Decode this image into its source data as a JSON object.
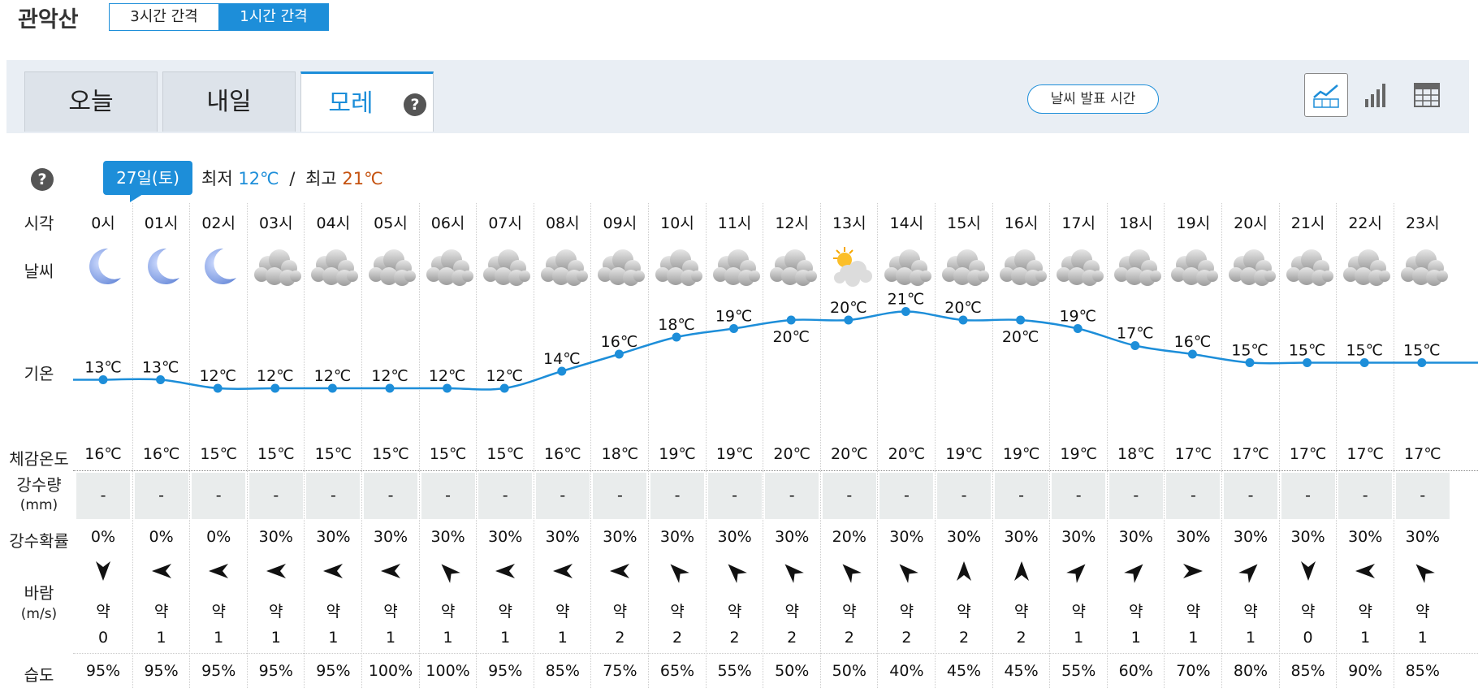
{
  "location": "관악산",
  "interval_tabs": [
    "3시간 간격",
    "1시간 간격"
  ],
  "day_tabs": [
    "오늘",
    "내일",
    "모레"
  ],
  "help_mark": "?",
  "publish_button": "날씨 발표 시간",
  "view_icons": [
    "line-chart-icon",
    "bar-chart-icon",
    "table-icon"
  ],
  "date_badge": "27일(토)",
  "minmax": {
    "min_label": "최저",
    "min": "12℃",
    "sep": "/",
    "max_label": "최고",
    "max": "21℃"
  },
  "row_labels": {
    "time": "시각",
    "weather": "날씨",
    "temp": "기온",
    "feel": "체감온도",
    "rain_1": "강수량",
    "rain_2": "(mm)",
    "prob": "강수확률",
    "wind_1": "바람",
    "wind_2": "(m/s)",
    "humidity": "습도"
  },
  "colors": {
    "accent": "#1d8ed9",
    "max_temp": "#c5520f",
    "rain_bg": "#e9ecec"
  },
  "hours": [
    {
      "time": "0시",
      "icon": "moon-icon",
      "temp": 13,
      "temp_label": "13℃",
      "feel": "16℃",
      "rain": "-",
      "prob": "0%",
      "wind_dir": "S",
      "wind_text": "약",
      "wind_speed": "0",
      "humidity": "95%"
    },
    {
      "time": "01시",
      "icon": "moon-icon",
      "temp": 13,
      "temp_label": "13℃",
      "feel": "16℃",
      "rain": "-",
      "prob": "0%",
      "wind_dir": "W",
      "wind_text": "약",
      "wind_speed": "1",
      "humidity": "95%"
    },
    {
      "time": "02시",
      "icon": "moon-icon",
      "temp": 12,
      "temp_label": "12℃",
      "feel": "15℃",
      "rain": "-",
      "prob": "0%",
      "wind_dir": "W",
      "wind_text": "약",
      "wind_speed": "1",
      "humidity": "95%"
    },
    {
      "time": "03시",
      "icon": "cloud-icon",
      "temp": 12,
      "temp_label": "12℃",
      "feel": "15℃",
      "rain": "-",
      "prob": "30%",
      "wind_dir": "W",
      "wind_text": "약",
      "wind_speed": "1",
      "humidity": "95%"
    },
    {
      "time": "04시",
      "icon": "cloud-icon",
      "temp": 12,
      "temp_label": "12℃",
      "feel": "15℃",
      "rain": "-",
      "prob": "30%",
      "wind_dir": "W",
      "wind_text": "약",
      "wind_speed": "1",
      "humidity": "95%"
    },
    {
      "time": "05시",
      "icon": "cloud-icon",
      "temp": 12,
      "temp_label": "12℃",
      "feel": "15℃",
      "rain": "-",
      "prob": "30%",
      "wind_dir": "W",
      "wind_text": "약",
      "wind_speed": "1",
      "humidity": "100%"
    },
    {
      "time": "06시",
      "icon": "cloud-icon",
      "temp": 12,
      "temp_label": "12℃",
      "feel": "15℃",
      "rain": "-",
      "prob": "30%",
      "wind_dir": "NW",
      "wind_text": "약",
      "wind_speed": "1",
      "humidity": "100%"
    },
    {
      "time": "07시",
      "icon": "cloud-icon",
      "temp": 12,
      "temp_label": "12℃",
      "feel": "15℃",
      "rain": "-",
      "prob": "30%",
      "wind_dir": "W",
      "wind_text": "약",
      "wind_speed": "1",
      "humidity": "95%"
    },
    {
      "time": "08시",
      "icon": "cloud-icon",
      "temp": 14,
      "temp_label": "14℃",
      "feel": "16℃",
      "rain": "-",
      "prob": "30%",
      "wind_dir": "W",
      "wind_text": "약",
      "wind_speed": "1",
      "humidity": "85%"
    },
    {
      "time": "09시",
      "icon": "cloud-icon",
      "temp": 16,
      "temp_label": "16℃",
      "feel": "18℃",
      "rain": "-",
      "prob": "30%",
      "wind_dir": "W",
      "wind_text": "약",
      "wind_speed": "2",
      "humidity": "75%"
    },
    {
      "time": "10시",
      "icon": "cloud-icon",
      "temp": 18,
      "temp_label": "18℃",
      "feel": "19℃",
      "rain": "-",
      "prob": "30%",
      "wind_dir": "NW",
      "wind_text": "약",
      "wind_speed": "2",
      "humidity": "65%"
    },
    {
      "time": "11시",
      "icon": "cloud-icon",
      "temp": 19,
      "temp_label": "19℃",
      "feel": "19℃",
      "rain": "-",
      "prob": "30%",
      "wind_dir": "NW",
      "wind_text": "약",
      "wind_speed": "2",
      "humidity": "55%"
    },
    {
      "time": "12시",
      "icon": "cloud-icon",
      "temp": 20,
      "temp_label": "20℃",
      "feel": "20℃",
      "rain": "-",
      "prob": "30%",
      "wind_dir": "NW",
      "wind_text": "약",
      "wind_speed": "2",
      "humidity": "50%"
    },
    {
      "time": "13시",
      "icon": "sun-cloud-icon",
      "temp": 20,
      "temp_label": "20℃",
      "feel": "20℃",
      "rain": "-",
      "prob": "20%",
      "wind_dir": "NW",
      "wind_text": "약",
      "wind_speed": "2",
      "humidity": "50%"
    },
    {
      "time": "14시",
      "icon": "cloud-icon",
      "temp": 21,
      "temp_label": "21℃",
      "feel": "20℃",
      "rain": "-",
      "prob": "30%",
      "wind_dir": "NW",
      "wind_text": "약",
      "wind_speed": "2",
      "humidity": "40%"
    },
    {
      "time": "15시",
      "icon": "cloud-icon",
      "temp": 20,
      "temp_label": "20℃",
      "feel": "19℃",
      "rain": "-",
      "prob": "30%",
      "wind_dir": "N",
      "wind_text": "약",
      "wind_speed": "2",
      "humidity": "45%"
    },
    {
      "time": "16시",
      "icon": "cloud-icon",
      "temp": 20,
      "temp_label": "20℃",
      "feel": "19℃",
      "rain": "-",
      "prob": "30%",
      "wind_dir": "N",
      "wind_text": "약",
      "wind_speed": "2",
      "humidity": "45%"
    },
    {
      "time": "17시",
      "icon": "cloud-icon",
      "temp": 19,
      "temp_label": "19℃",
      "feel": "19℃",
      "rain": "-",
      "prob": "30%",
      "wind_dir": "NE",
      "wind_text": "약",
      "wind_speed": "1",
      "humidity": "55%"
    },
    {
      "time": "18시",
      "icon": "cloud-icon",
      "temp": 17,
      "temp_label": "17℃",
      "feel": "18℃",
      "rain": "-",
      "prob": "30%",
      "wind_dir": "NE",
      "wind_text": "약",
      "wind_speed": "1",
      "humidity": "60%"
    },
    {
      "time": "19시",
      "icon": "cloud-icon",
      "temp": 16,
      "temp_label": "16℃",
      "feel": "17℃",
      "rain": "-",
      "prob": "30%",
      "wind_dir": "E",
      "wind_text": "약",
      "wind_speed": "1",
      "humidity": "70%"
    },
    {
      "time": "20시",
      "icon": "cloud-icon",
      "temp": 15,
      "temp_label": "15℃",
      "feel": "17℃",
      "rain": "-",
      "prob": "30%",
      "wind_dir": "NE",
      "wind_text": "약",
      "wind_speed": "1",
      "humidity": "80%"
    },
    {
      "time": "21시",
      "icon": "cloud-icon",
      "temp": 15,
      "temp_label": "15℃",
      "feel": "17℃",
      "rain": "-",
      "prob": "30%",
      "wind_dir": "S",
      "wind_text": "약",
      "wind_speed": "0",
      "humidity": "85%"
    },
    {
      "time": "22시",
      "icon": "cloud-icon",
      "temp": 15,
      "temp_label": "15℃",
      "feel": "17℃",
      "rain": "-",
      "prob": "30%",
      "wind_dir": "W",
      "wind_text": "약",
      "wind_speed": "1",
      "humidity": "90%"
    },
    {
      "time": "23시",
      "icon": "cloud-icon",
      "temp": 15,
      "temp_label": "15℃",
      "feel": "17℃",
      "rain": "-",
      "prob": "30%",
      "wind_dir": "NW",
      "wind_text": "약",
      "wind_speed": "1",
      "humidity": "85%"
    }
  ]
}
